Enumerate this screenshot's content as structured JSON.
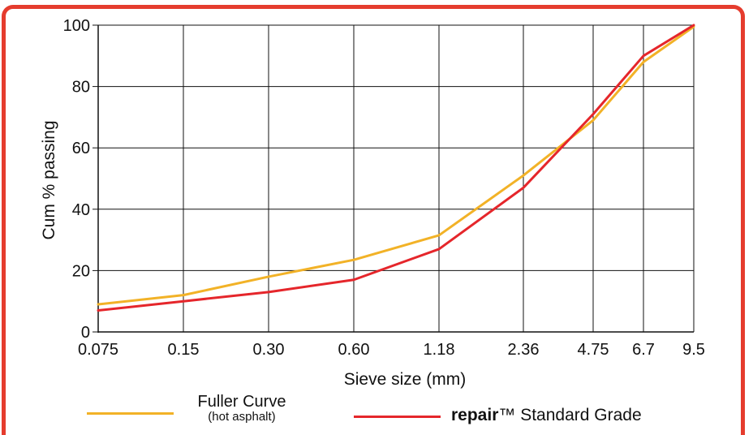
{
  "chart_data": {
    "type": "line",
    "x_categories": [
      "0.075",
      "0.15",
      "0.30",
      "0.60",
      "1.18",
      "2.36",
      "4.75",
      "6.7",
      "9.5"
    ],
    "x_scale": "sieve (logarithmic-style spacing)",
    "xlabel": "Sieve size (mm)",
    "ylabel": "Cum % passing",
    "ylim": [
      0,
      100
    ],
    "yticks": [
      0,
      20,
      40,
      60,
      80,
      100
    ],
    "grid": true,
    "series": [
      {
        "name": "Fuller Curve",
        "name_sub": "(hot asphalt)",
        "color": "#f2b227",
        "values": [
          9,
          12,
          18,
          23.5,
          31.5,
          51,
          69,
          88,
          99.5
        ]
      },
      {
        "name_bold": "repair",
        "name_rest": "™ Standard Grade",
        "color": "#e5262b",
        "values": [
          7,
          10,
          13,
          17,
          27,
          47,
          71,
          90,
          100
        ]
      }
    ],
    "legend_position": "bottom"
  },
  "colors": {
    "frame": "#e53c2e",
    "grid": "#111111"
  }
}
